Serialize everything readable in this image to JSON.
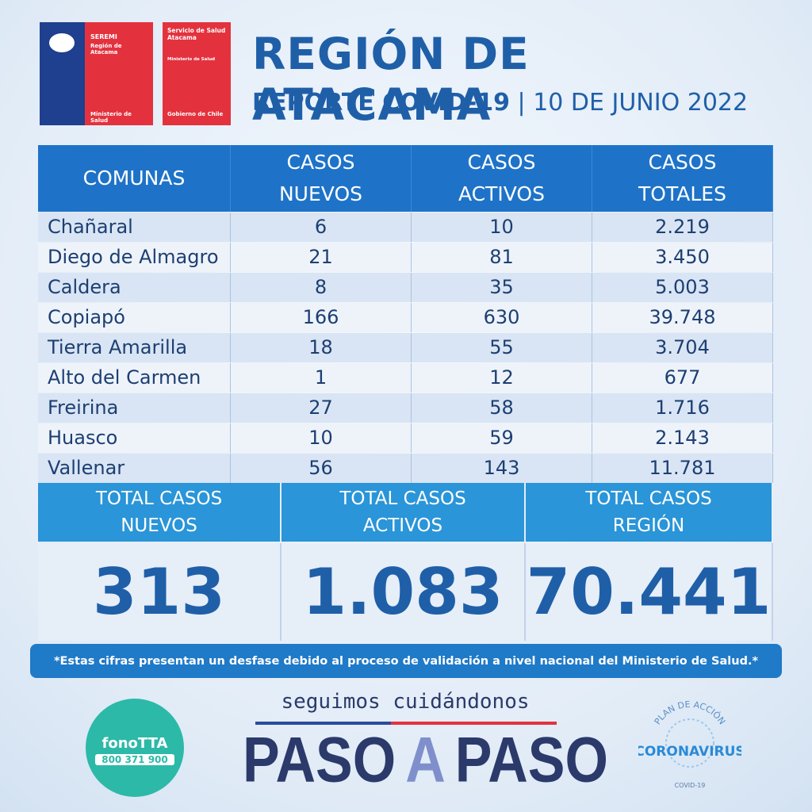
{
  "logos": {
    "seremi": {
      "name": "SEREMI",
      "region": "Región de Atacama",
      "ministry": "Ministerio de Salud"
    },
    "servicio": {
      "name": "Servicio de Salud Atacama",
      "ministry": "Ministerio de Salud",
      "government": "Gobierno de Chile"
    }
  },
  "header": {
    "title": "REGIÓN DE ATACAMA",
    "subtitle": "REPORTE COVID-19",
    "date": "10 DE JUNIO 2022"
  },
  "table": {
    "columns": [
      "COMUNAS",
      "CASOS NUEVOS",
      "CASOS ACTIVOS",
      "CASOS TOTALES"
    ],
    "rows": [
      [
        "Chañaral",
        "6",
        "10",
        "2.219"
      ],
      [
        "Diego de Almagro",
        "21",
        "81",
        "3.450"
      ],
      [
        "Caldera",
        "8",
        "35",
        "5.003"
      ],
      [
        "Copiapó",
        "166",
        "630",
        "39.748"
      ],
      [
        "Tierra Amarilla",
        "18",
        "55",
        "3.704"
      ],
      [
        "Alto del Carmen",
        "1",
        "12",
        "677"
      ],
      [
        "Freirina",
        "27",
        "58",
        "1.716"
      ],
      [
        "Huasco",
        "10",
        "59",
        "2.143"
      ],
      [
        "Vallenar",
        "56",
        "143",
        "11.781"
      ]
    ]
  },
  "totals": [
    {
      "label": "TOTAL CASOS NUEVOS",
      "value": "313"
    },
    {
      "label": "TOTAL CASOS ACTIVOS",
      "value": "1.083"
    },
    {
      "label": "TOTAL CASOS REGIÓN",
      "value": "70.441"
    }
  ],
  "footnote": "*Estas cifras presentan un desfase debido al proceso de validación a nivel nacional del Ministerio de Salud.*",
  "footer": {
    "slogan": "seguimos cuidándonos",
    "campaign": [
      "PASO",
      "A",
      "PASO"
    ],
    "phone_brand": "fonoTTA",
    "phone": "800 371 900",
    "plan": {
      "top": "PLAN DE ACCIÓN",
      "name": "CORONAVIRUS",
      "bottom": "COVID-19"
    }
  }
}
